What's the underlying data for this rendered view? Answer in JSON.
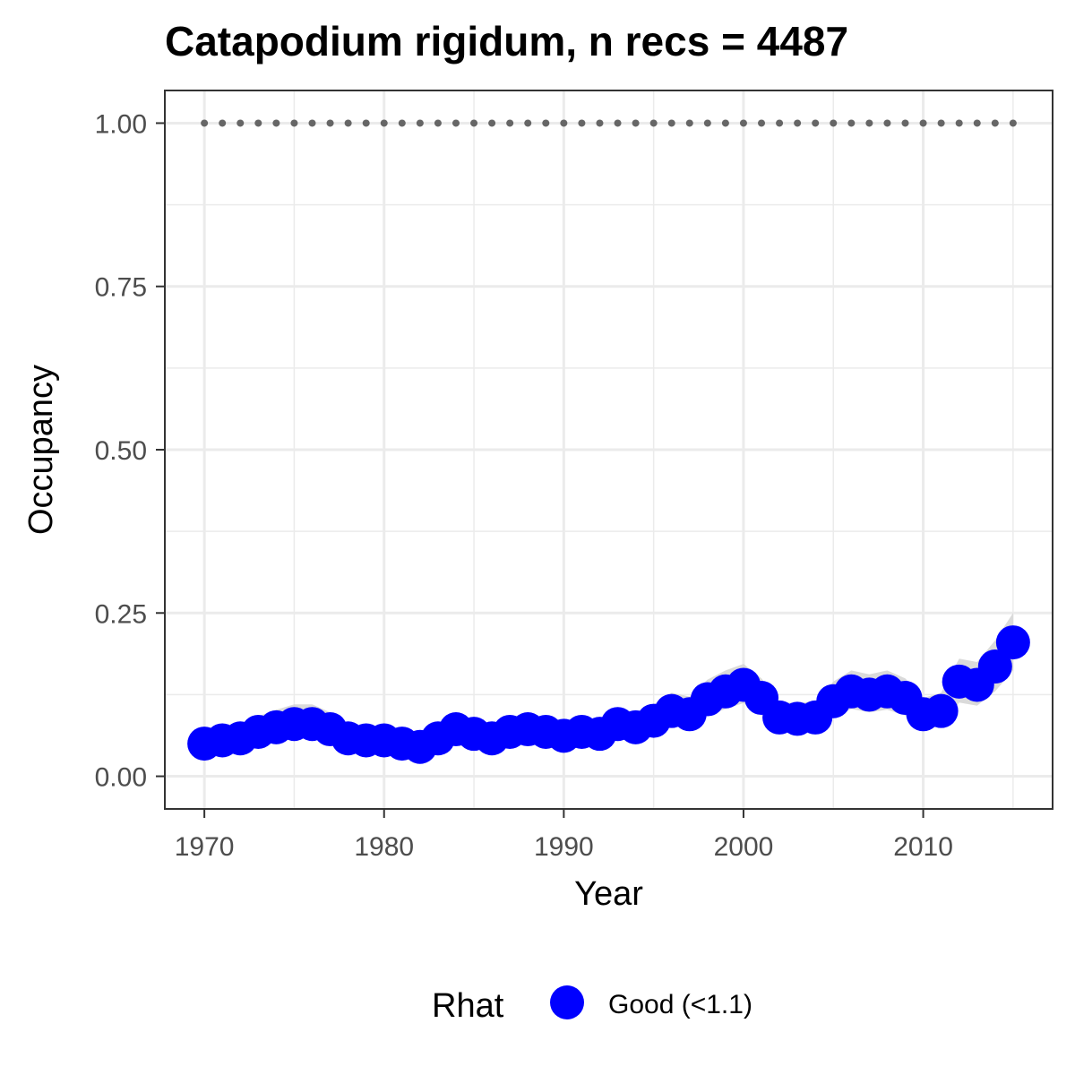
{
  "chart_data": {
    "type": "line",
    "title": "Catapodium rigidum, n recs = 4487",
    "xlabel": "Year",
    "ylabel": "Occupancy",
    "xlim": [
      1967.8,
      2017.2
    ],
    "ylim": [
      -0.05,
      1.05
    ],
    "x_ticks": [
      1970,
      1980,
      1990,
      2000,
      2010
    ],
    "x_tick_labels": [
      "1970",
      "1980",
      "1990",
      "2000",
      "2010"
    ],
    "y_ticks": [
      0,
      0.25,
      0.5,
      0.75,
      1.0
    ],
    "y_tick_labels": [
      "0.00",
      "0.25",
      "0.50",
      "0.75",
      "1.00"
    ],
    "grid": true,
    "legend": {
      "title": "Rhat",
      "position": "bottom",
      "entries": [
        {
          "label": "Good (<1.1)",
          "color": "#0000ff"
        }
      ]
    },
    "colors": {
      "points": "#0000ff",
      "ribbon": "#d3d3d3",
      "reference_line": "#666666",
      "grid": "#ebebeb",
      "panel_border": "#333333"
    },
    "reference_line": {
      "y": 1.0,
      "style": "dotted",
      "x_range": [
        1970,
        2015
      ]
    },
    "series": [
      {
        "name": "Good (<1.1)",
        "x": [
          1970,
          1971,
          1972,
          1973,
          1974,
          1975,
          1976,
          1977,
          1978,
          1979,
          1980,
          1981,
          1982,
          1983,
          1984,
          1985,
          1986,
          1987,
          1988,
          1989,
          1990,
          1991,
          1992,
          1993,
          1994,
          1995,
          1996,
          1997,
          1998,
          1999,
          2000,
          2001,
          2002,
          2003,
          2004,
          2005,
          2006,
          2007,
          2008,
          2009,
          2010,
          2011,
          2012,
          2013,
          2014,
          2015
        ],
        "y": [
          0.05,
          0.055,
          0.058,
          0.068,
          0.075,
          0.08,
          0.08,
          0.072,
          0.058,
          0.055,
          0.055,
          0.05,
          0.045,
          0.058,
          0.072,
          0.065,
          0.058,
          0.068,
          0.072,
          0.068,
          0.062,
          0.068,
          0.065,
          0.08,
          0.075,
          0.085,
          0.1,
          0.095,
          0.118,
          0.13,
          0.14,
          0.12,
          0.09,
          0.088,
          0.09,
          0.115,
          0.13,
          0.125,
          0.13,
          0.12,
          0.095,
          0.1,
          0.145,
          0.14,
          0.168,
          0.205
        ],
        "lower": [
          0.035,
          0.04,
          0.043,
          0.05,
          0.055,
          0.058,
          0.058,
          0.053,
          0.043,
          0.041,
          0.041,
          0.037,
          0.033,
          0.043,
          0.054,
          0.049,
          0.043,
          0.051,
          0.054,
          0.051,
          0.046,
          0.051,
          0.049,
          0.061,
          0.057,
          0.066,
          0.078,
          0.074,
          0.093,
          0.103,
          0.112,
          0.095,
          0.07,
          0.068,
          0.07,
          0.09,
          0.103,
          0.098,
          0.102,
          0.093,
          0.073,
          0.076,
          0.113,
          0.108,
          0.13,
          0.162
        ],
        "upper": [
          0.07,
          0.075,
          0.079,
          0.092,
          0.102,
          0.11,
          0.11,
          0.098,
          0.078,
          0.074,
          0.074,
          0.068,
          0.061,
          0.078,
          0.096,
          0.087,
          0.077,
          0.09,
          0.095,
          0.09,
          0.082,
          0.09,
          0.086,
          0.104,
          0.098,
          0.11,
          0.128,
          0.122,
          0.148,
          0.162,
          0.172,
          0.15,
          0.114,
          0.112,
          0.115,
          0.145,
          0.162,
          0.156,
          0.162,
          0.15,
          0.12,
          0.128,
          0.18,
          0.175,
          0.208,
          0.25
        ]
      }
    ]
  }
}
